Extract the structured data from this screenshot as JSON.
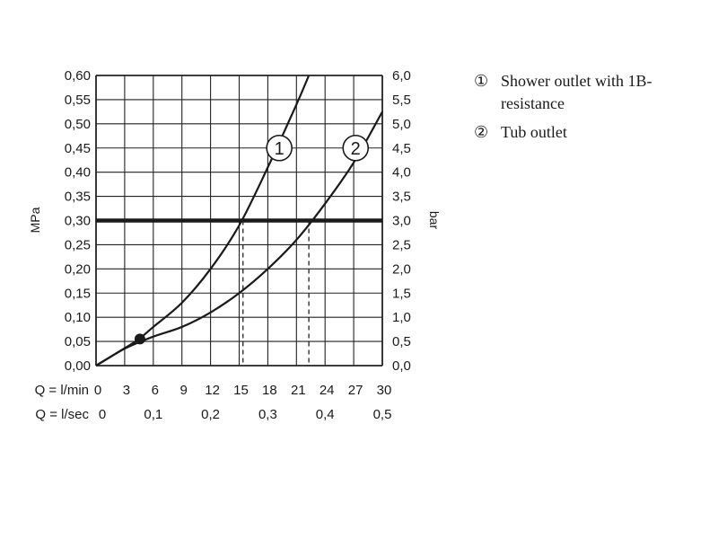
{
  "chart_data": {
    "type": "line",
    "title": "",
    "y_left_label": "MPa",
    "y_right_label": "bar",
    "x_row1_prefix": "Q = l/min",
    "x_row2_prefix": "Q = l/sec",
    "x_lmin_ticks": [
      "0",
      "3",
      "6",
      "9",
      "12",
      "15",
      "18",
      "21",
      "24",
      "27",
      "30"
    ],
    "x_lsec_ticks": [
      "0",
      "0,1",
      "0,2",
      "0,3",
      "0,4",
      "0,5"
    ],
    "y_left_ticks": [
      "0,00",
      "0,05",
      "0,10",
      "0,15",
      "0,20",
      "0,25",
      "0,30",
      "0,35",
      "0,40",
      "0,45",
      "0,50",
      "0,55",
      "0,60"
    ],
    "y_right_ticks": [
      "0,0",
      "0,5",
      "1,0",
      "1,5",
      "2,0",
      "2,5",
      "3,0",
      "3,5",
      "4,0",
      "4,5",
      "5,0",
      "5,5",
      "6,0"
    ],
    "xlim": [
      0,
      30
    ],
    "ylim": [
      0,
      0.6
    ],
    "grid": true,
    "reference_pressure_mpa": 0.3,
    "series": [
      {
        "name": "1",
        "x": [
          0,
          3,
          4.5,
          6,
          9,
          12,
          15,
          18,
          21,
          22.3
        ],
        "values": [
          0,
          0.036,
          0.055,
          0.08,
          0.13,
          0.2,
          0.29,
          0.41,
          0.54,
          0.6
        ]
      },
      {
        "name": "2",
        "x": [
          0,
          3,
          6,
          9,
          12,
          15,
          18,
          21,
          24,
          27,
          30
        ],
        "values": [
          0,
          0.035,
          0.06,
          0.08,
          0.11,
          0.15,
          0.2,
          0.26,
          0.335,
          0.42,
          0.525
        ]
      }
    ],
    "intersections": [
      {
        "series": "1",
        "x": 15.4,
        "y": 0.3
      },
      {
        "series": "2",
        "x": 22.3,
        "y": 0.3
      }
    ],
    "marker": {
      "x": 4.6,
      "y": 0.055
    },
    "curve_labels": [
      {
        "text": "1",
        "x": 19.2,
        "y": 0.45
      },
      {
        "text": "2",
        "x": 27.2,
        "y": 0.45
      }
    ]
  },
  "legend": {
    "items": [
      {
        "num": "①",
        "text": "Shower outlet with 1B-resistance"
      },
      {
        "num": "②",
        "text": "Tub outlet"
      }
    ]
  }
}
